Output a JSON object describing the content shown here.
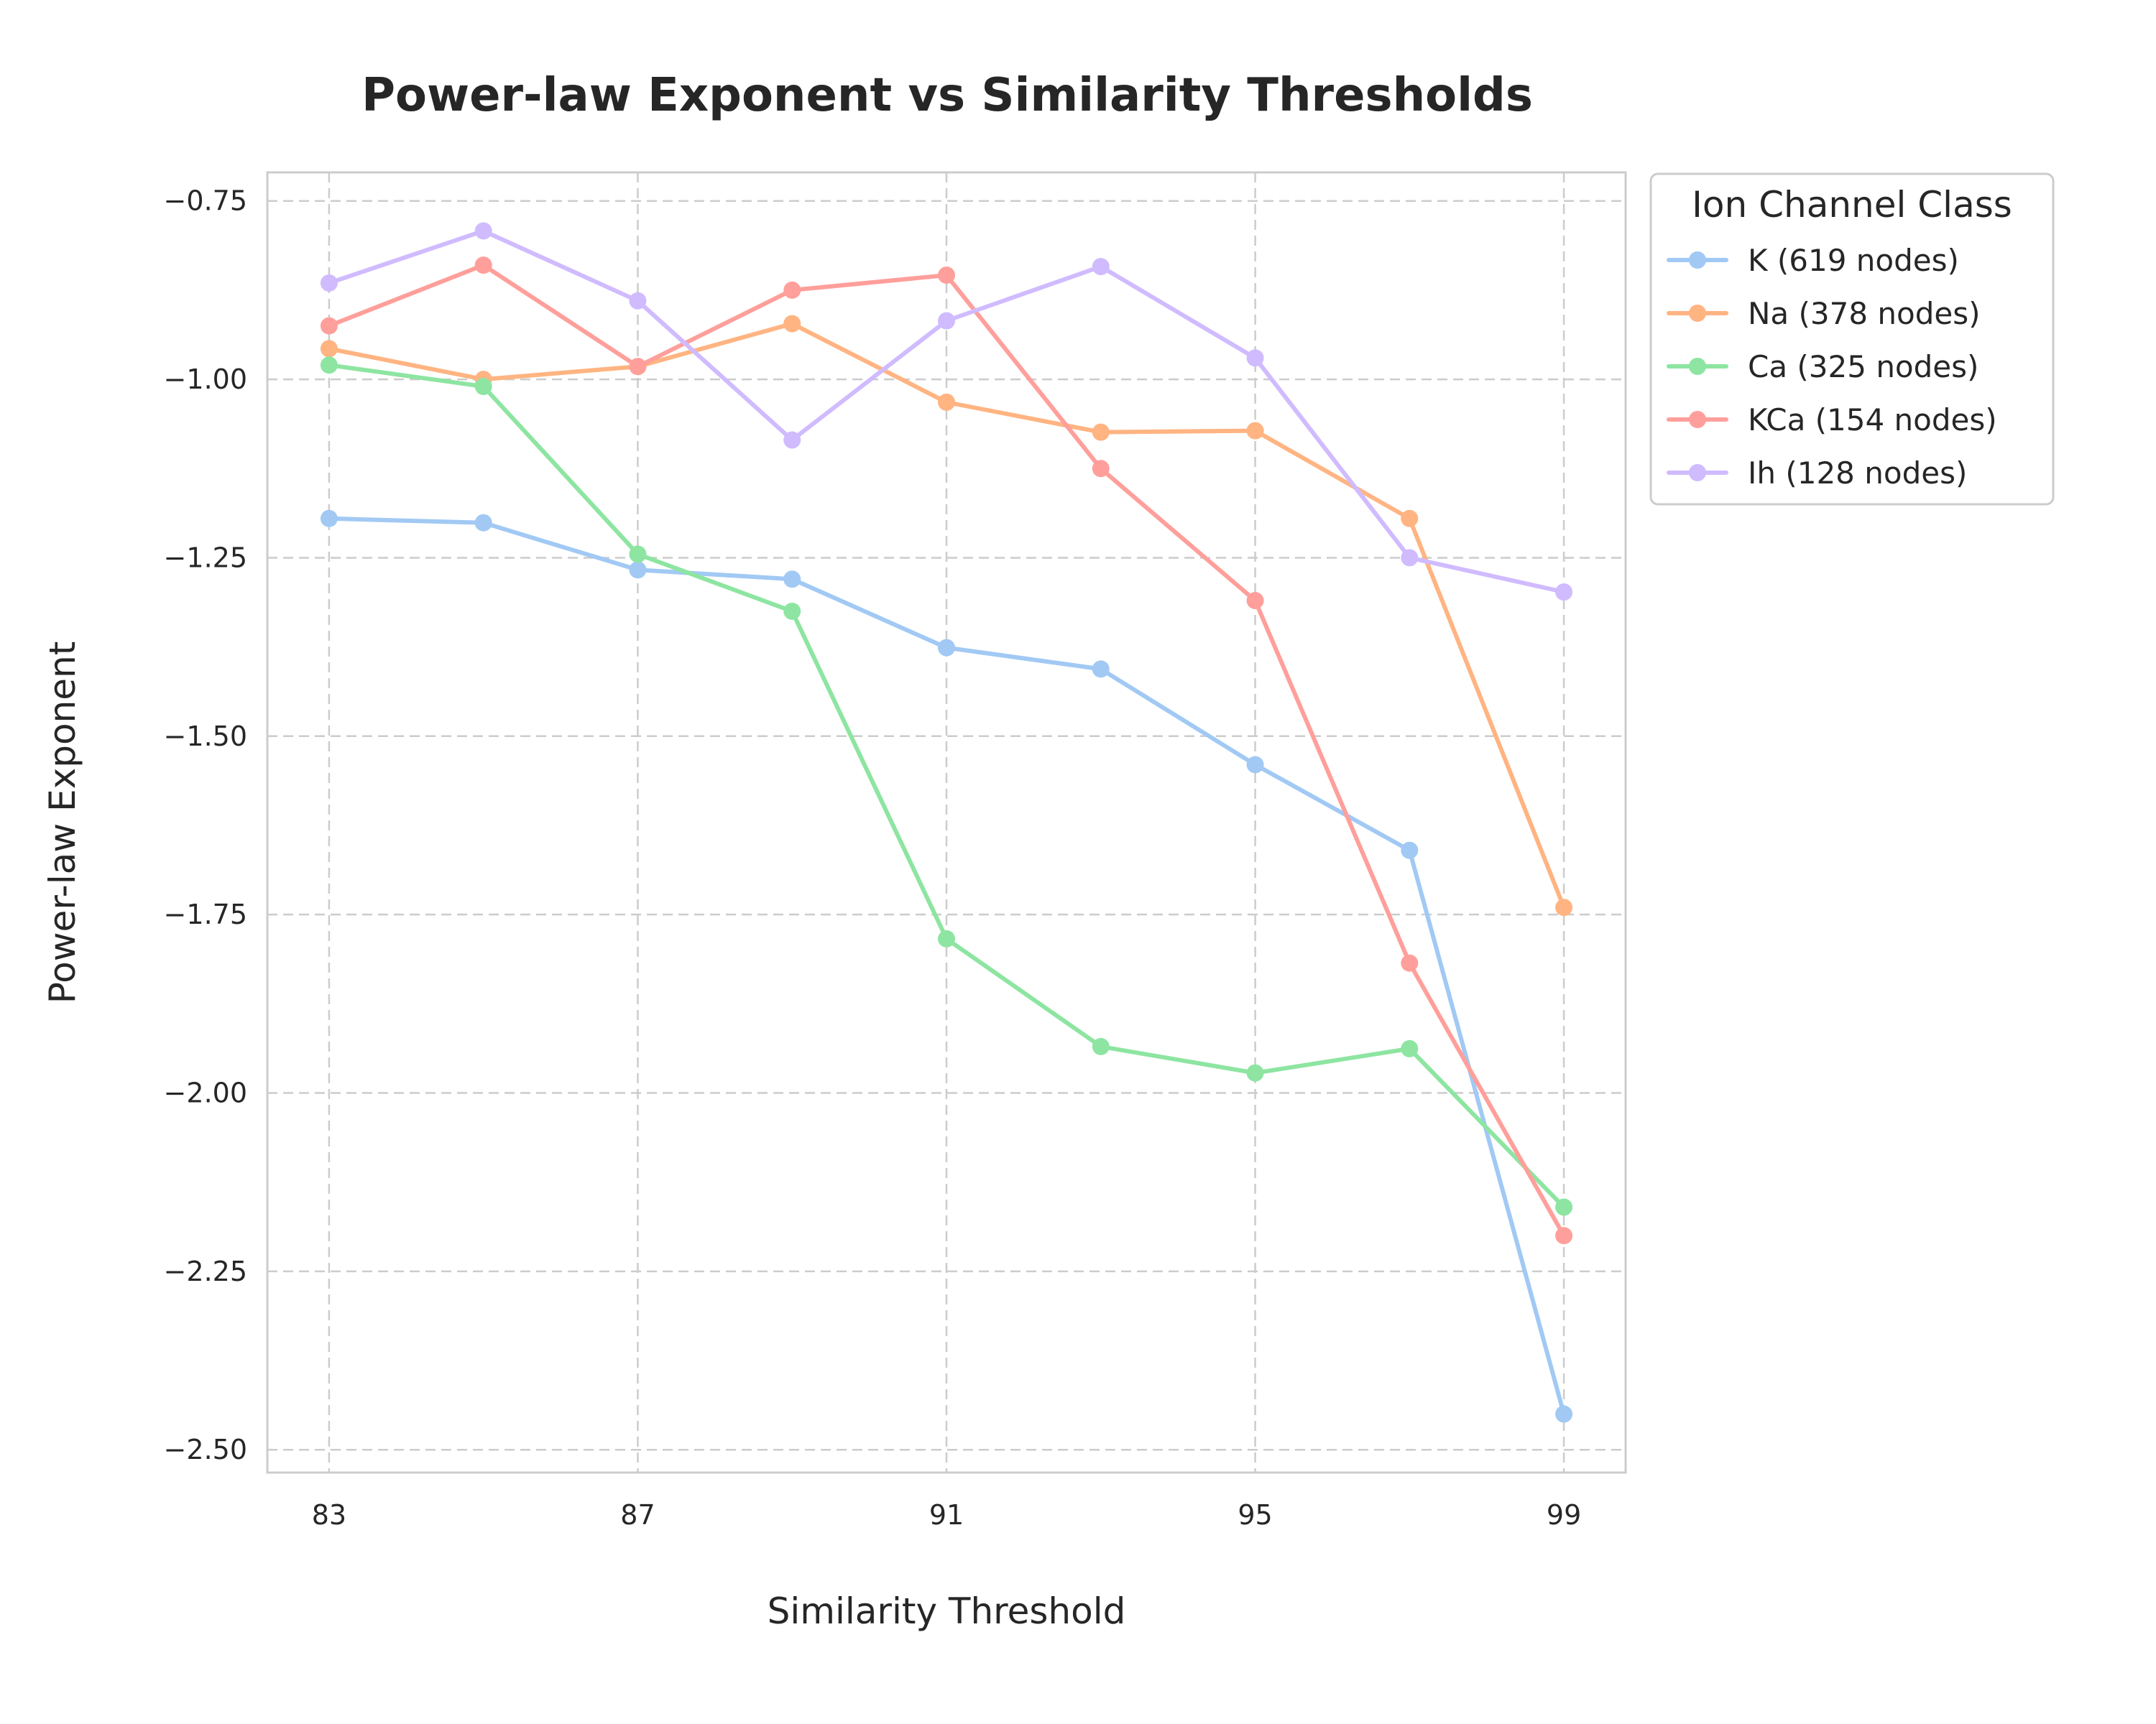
{
  "chart_data": {
    "type": "line",
    "title": "Power-law Exponent vs Similarity Thresholds",
    "xlabel": "Similarity Threshold",
    "ylabel": "Power-law Exponent",
    "x": [
      83,
      85,
      87,
      89,
      91,
      93,
      95,
      97,
      99
    ],
    "xlim": [
      82.2,
      99.8
    ],
    "ylim": [
      -2.532,
      -0.71
    ],
    "xticks": [
      83,
      87,
      91,
      95,
      99
    ],
    "xtick_labels": [
      "83",
      "87",
      "91",
      "95",
      "99"
    ],
    "yticks": [
      -0.75,
      -1.0,
      -1.25,
      -1.5,
      -1.75,
      -2.0,
      -2.25,
      -2.5
    ],
    "ytick_labels": [
      "−0.75",
      "−1.00",
      "−1.25",
      "−1.50",
      "−1.75",
      "−2.00",
      "−2.25",
      "−2.50"
    ],
    "grid": true,
    "legend": {
      "title": "Ion Channel Class",
      "placement": "outside-upper-right"
    },
    "series": [
      {
        "name": "K (619 nodes)",
        "color": "#a1c9f4",
        "values": [
          -1.195,
          -1.201,
          -1.267,
          -1.28,
          -1.376,
          -1.406,
          -1.54,
          -1.66,
          -2.45
        ]
      },
      {
        "name": "Na (378 nodes)",
        "color": "#ffb482",
        "values": [
          -0.957,
          -1.0,
          -0.982,
          -0.922,
          -1.032,
          -1.074,
          -1.072,
          -1.195,
          -1.74
        ]
      },
      {
        "name": "Ca (325 nodes)",
        "color": "#8de5a1",
        "values": [
          -0.98,
          -1.01,
          -1.245,
          -1.325,
          -1.784,
          -1.935,
          -1.972,
          -1.938,
          -2.16
        ]
      },
      {
        "name": "KCa (154 nodes)",
        "color": "#ff9f9b",
        "values": [
          -0.925,
          -0.84,
          -0.982,
          -0.875,
          -0.854,
          -1.125,
          -1.31,
          -1.818,
          -2.2
        ]
      },
      {
        "name": "Ih (128 nodes)",
        "color": "#d0bbff",
        "values": [
          -0.865,
          -0.792,
          -0.89,
          -1.085,
          -0.918,
          -0.842,
          -0.97,
          -1.25,
          -1.298
        ]
      }
    ]
  }
}
